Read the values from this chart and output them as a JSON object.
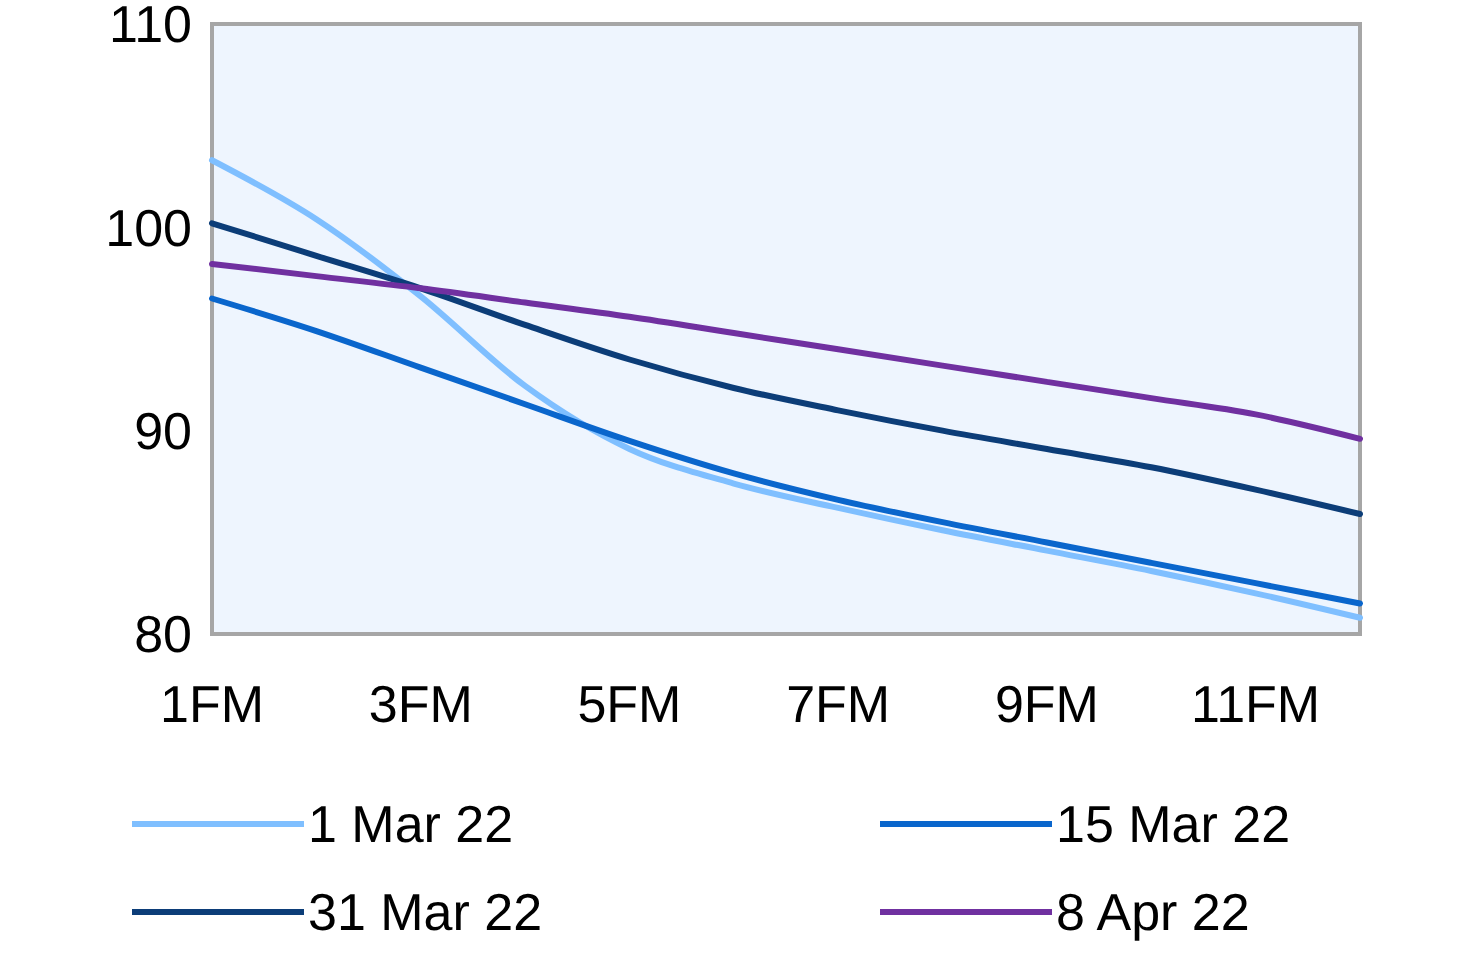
{
  "chart_data": {
    "type": "line",
    "categories": [
      "1FM",
      null,
      "3FM",
      null,
      "5FM",
      null,
      "7FM",
      null,
      "9FM",
      null,
      "11FM",
      null
    ],
    "series": [
      {
        "name": "1 Mar 22",
        "color": "#7fbfff",
        "values": [
          103.3,
          100.4,
          96.6,
          92.2,
          89.1,
          87.4,
          86.2,
          85.1,
          84.1,
          83.1,
          82.0,
          80.8
        ]
      },
      {
        "name": "15 Mar 22",
        "color": "#0a66cc",
        "values": [
          96.5,
          94.9,
          93.1,
          91.3,
          89.5,
          87.9,
          86.6,
          85.5,
          84.5,
          83.5,
          82.5,
          81.5
        ]
      },
      {
        "name": "31 Mar 22",
        "color": "#0c3d78",
        "values": [
          100.2,
          98.6,
          97.0,
          95.2,
          93.5,
          92.1,
          91.0,
          90.0,
          89.1,
          88.2,
          87.1,
          85.9
        ]
      },
      {
        "name": "8 Apr 22",
        "color": "#7030a0",
        "values": [
          98.2,
          97.6,
          97.0,
          96.3,
          95.6,
          94.8,
          94.0,
          93.2,
          92.4,
          91.6,
          90.8,
          89.6
        ]
      }
    ],
    "ylim": [
      80,
      110
    ],
    "yticks": [
      80,
      90,
      100,
      110
    ],
    "grid": false,
    "legend": "bottom",
    "line_style": "solid",
    "marker": "none"
  }
}
